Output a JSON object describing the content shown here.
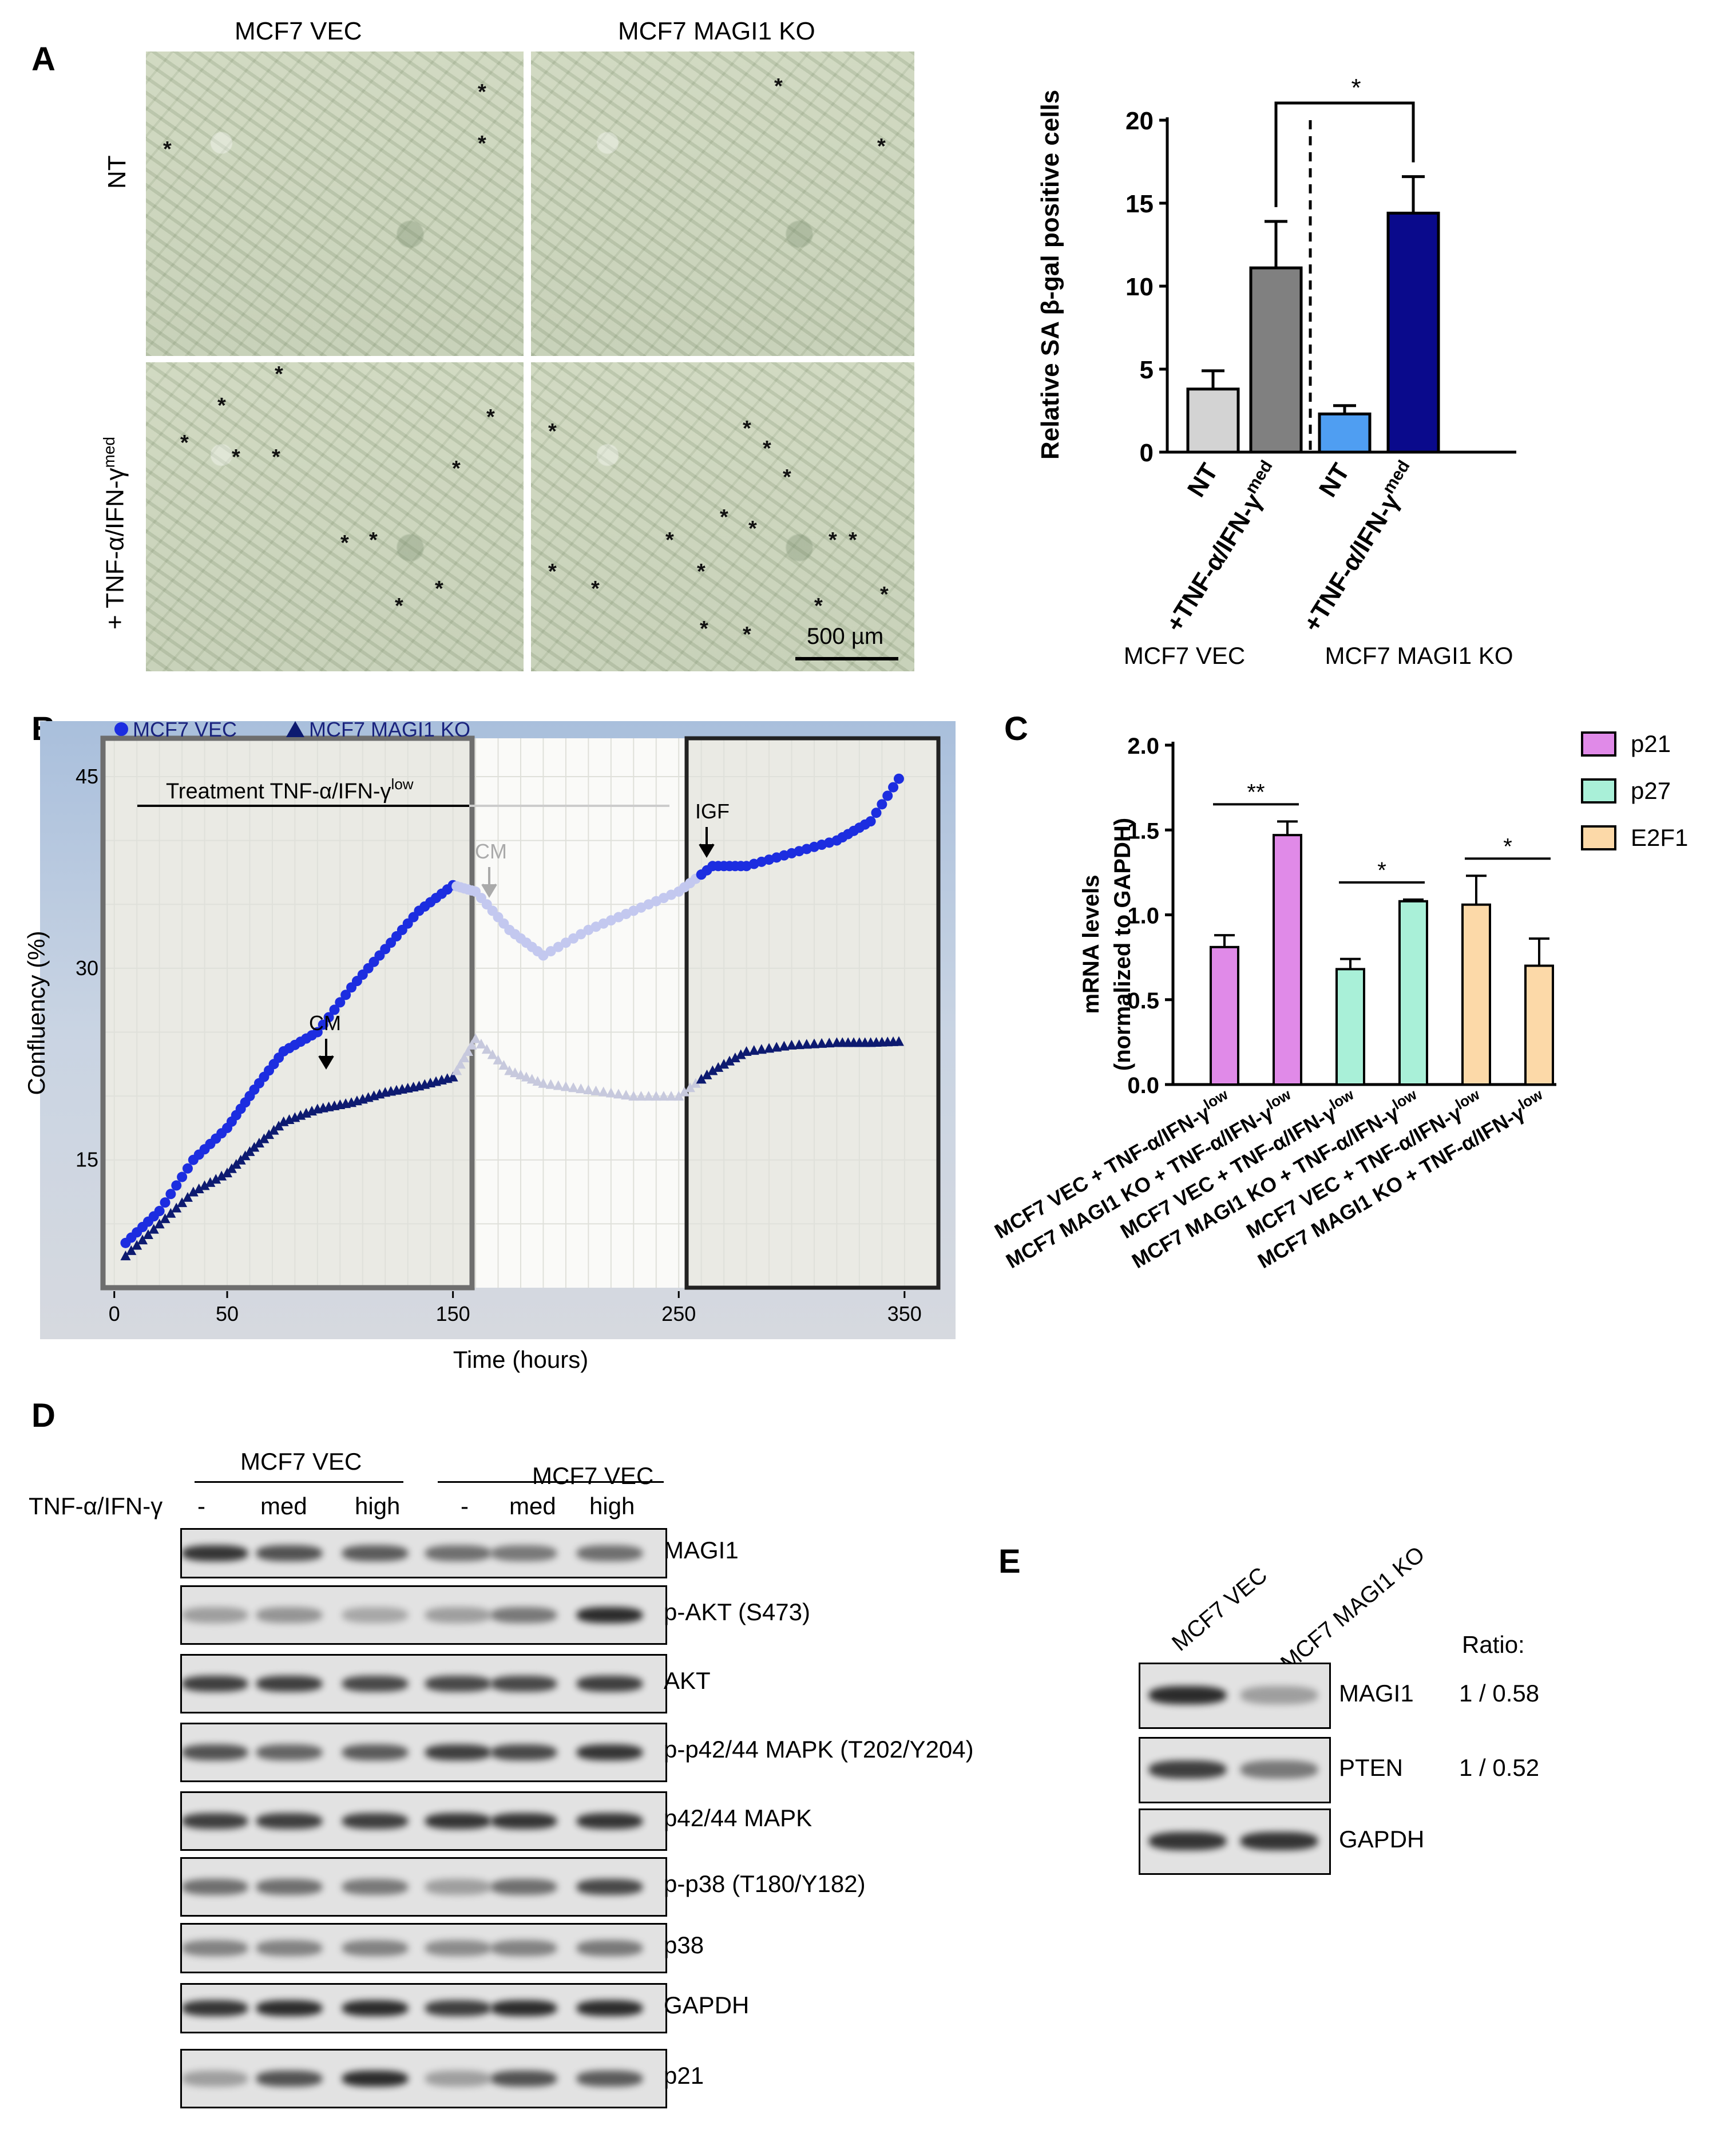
{
  "panelA": {
    "letter": "A",
    "col_labels": [
      "MCF7 VEC",
      "MCF7 MAGI1 KO"
    ],
    "row_label_nt": "NT",
    "row_label_treat": "+ TNF-α/IFN-γ",
    "row_label_treat_sup": "med",
    "scale_bar": "500 µm",
    "asterisk": "*"
  },
  "panelA_chart": {
    "chart_data": {
      "type": "bar",
      "categories": [
        "NT",
        "+TNF-α/IFN-γ med",
        "NT",
        "+TNF-α/IFN-γ med"
      ],
      "values": [
        3.8,
        11.1,
        2.3,
        14.4
      ],
      "errors": [
        1.1,
        2.8,
        0.5,
        2.2
      ],
      "colors": [
        "#d3d3d3",
        "#808080",
        "#4f9ef2",
        "#0a0a8c"
      ],
      "ylabel": "Relative SA β-gal positive cells",
      "ylim": [
        0,
        20
      ],
      "yticks": [
        0,
        5,
        10,
        15,
        20
      ],
      "groups": [
        "MCF7 VEC",
        "MCF7 MAGI1 KO"
      ],
      "significance": "*"
    },
    "xtick_nt": "NT",
    "xtick_treat": "+TNF-α/IFN-γ",
    "xtick_treat_sup": "med"
  },
  "panelB": {
    "letter": "B",
    "chart_data": {
      "type": "scatter",
      "title": "",
      "xlabel": "Time (hours)",
      "ylabel": "Confluency (%)",
      "xlim": [
        -5,
        365
      ],
      "ylim": [
        5,
        48
      ],
      "xticks": [
        0,
        50,
        150,
        250,
        350
      ],
      "yticks": [
        15,
        30,
        45
      ],
      "series": [
        {
          "name": "MCF7 VEC",
          "color": "#1c2de0",
          "x": [
            5,
            20,
            35,
            50,
            62,
            75,
            90,
            105,
            120,
            135,
            150,
            160,
            175,
            190,
            210,
            230,
            250,
            265,
            280,
            300,
            320,
            335,
            350
          ],
          "y": [
            8.5,
            11,
            15,
            17.5,
            20.5,
            23.5,
            25,
            28.5,
            31.5,
            34.5,
            36.5,
            36,
            33,
            31,
            33,
            34.5,
            36,
            38,
            38,
            39,
            40,
            41.5,
            45.5
          ]
        },
        {
          "name": "MCF7 MAGI1 KO",
          "color": "#0d1a70",
          "x": [
            5,
            20,
            35,
            50,
            62,
            75,
            90,
            105,
            120,
            135,
            150,
            160,
            175,
            190,
            210,
            230,
            250,
            265,
            280,
            300,
            320,
            335,
            350
          ],
          "y": [
            7.5,
            10,
            12.5,
            14,
            16,
            18,
            19,
            19.5,
            20.3,
            20.8,
            21.5,
            24.5,
            22,
            21,
            20.5,
            20,
            20,
            22,
            23.5,
            24,
            24.2,
            24.2,
            24.3
          ]
        }
      ],
      "annotations": [
        "Treatment TNF-α/IFN-γ",
        "low",
        "CM",
        "CM",
        "IGF"
      ]
    }
  },
  "panelC": {
    "letter": "C",
    "chart_data": {
      "type": "bar",
      "ylabel": "mRNA levels",
      "ylabel2": "(normalized to GAPDH)",
      "ylim": [
        0,
        2.0
      ],
      "yticks": [
        "0.0",
        "0.5",
        "1.0",
        "1.5",
        "2.0"
      ],
      "series": [
        {
          "name": "p21",
          "color": "#e08ae8",
          "values": [
            0.81,
            1.47
          ]
        },
        {
          "name": "p27",
          "color": "#a9f0d8",
          "values": [
            0.68,
            1.08
          ]
        },
        {
          "name": "E2F1",
          "color": "#fcd9a8",
          "values": [
            1.06,
            0.7
          ]
        }
      ],
      "errors": [
        [
          0.07,
          0.08
        ],
        [
          0.06,
          0.01
        ],
        [
          0.17,
          0.16
        ]
      ],
      "significance": [
        "**",
        "*",
        "*"
      ],
      "categories": [
        "MCF7 VEC + TNF-α/IFN-γ",
        "MCF7 MAGI1 KO + TNF-α/IFN-γ"
      ],
      "category_sup": "low"
    }
  },
  "panelD": {
    "letter": "D",
    "group1": "MCF7 VEC",
    "group2": "MCF7 VEC",
    "treat_label": "TNF-α/IFN-γ",
    "lanes": [
      "-",
      "med",
      "high",
      "-",
      "med",
      "high"
    ],
    "blots": [
      "MAGI1",
      "p-AKT (S473)",
      "AKT",
      "p-p42/44 MAPK (T202/Y204)",
      "p42/44 MAPK",
      "p-p38 (T180/Y182)",
      "p38",
      "GAPDH",
      "p21"
    ]
  },
  "panelE": {
    "letter": "E",
    "lanes": [
      "MCF7 VEC",
      "MCF7 MAGI1 KO"
    ],
    "ratio_title": "Ratio:",
    "blots": [
      {
        "name": "MAGI1",
        "ratio": "1 / 0.58"
      },
      {
        "name": "PTEN",
        "ratio": "1 / 0.52"
      },
      {
        "name": "GAPDH",
        "ratio": ""
      }
    ]
  }
}
